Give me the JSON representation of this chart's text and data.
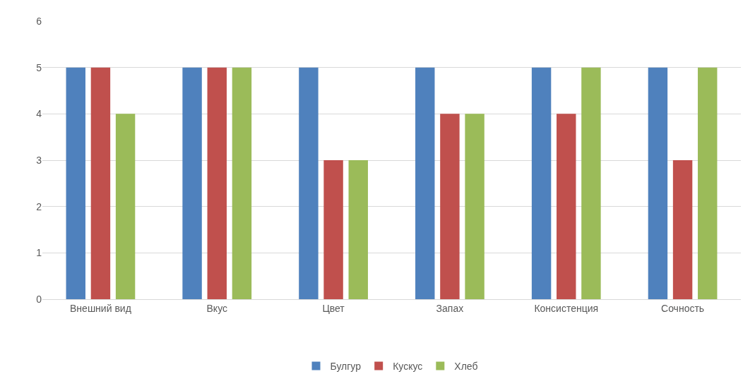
{
  "chart_data": {
    "type": "bar",
    "categories": [
      "Внешний вид",
      "Вкус",
      "Цвет",
      "Запах",
      "Консистенция",
      "Сочность"
    ],
    "series": [
      {
        "name": "Булгур",
        "color": "#4f81bd",
        "values": [
          5,
          5,
          5,
          5,
          5,
          5
        ]
      },
      {
        "name": "Кускус",
        "color": "#c0504d",
        "values": [
          5,
          5,
          3,
          4,
          4,
          3
        ]
      },
      {
        "name": "Хлеб",
        "color": "#9bbb59",
        "values": [
          4,
          5,
          3,
          4,
          5,
          5
        ]
      }
    ],
    "ylim": [
      0,
      6
    ],
    "yticks": [
      0,
      1,
      2,
      3,
      4,
      5,
      6
    ],
    "grid": "y",
    "legend": "bottom"
  }
}
